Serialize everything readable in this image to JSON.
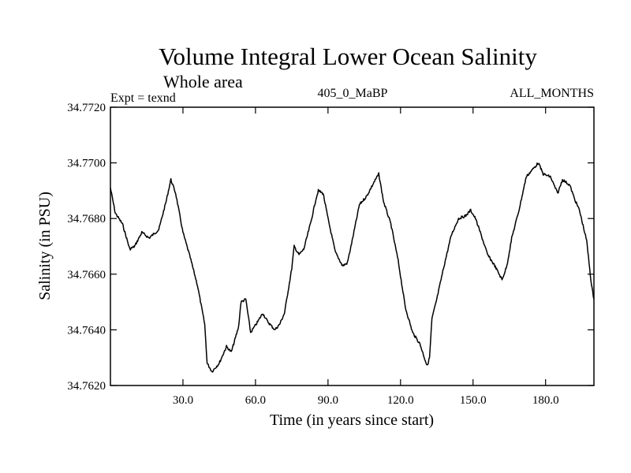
{
  "chart_data": {
    "type": "line",
    "title": "Volume Integral Lower Ocean Salinity",
    "subtitle": "Whole area",
    "annotations": {
      "left": "Expt = texnd",
      "center": "405_0_MaBP",
      "right": "ALL_MONTHS"
    },
    "xlabel": "Time (in years since start)",
    "ylabel": "Salinity (in PSU)",
    "xlim": [
      0,
      200
    ],
    "ylim": [
      34.762,
      34.772
    ],
    "xticks": [
      30,
      60,
      90,
      120,
      150,
      180
    ],
    "xtick_labels": [
      "30.0",
      "60.0",
      "90.0",
      "120.0",
      "150.0",
      "180.0"
    ],
    "yticks": [
      34.762,
      34.764,
      34.766,
      34.768,
      34.77,
      34.772
    ],
    "ytick_labels": [
      "34.7620",
      "34.7640",
      "34.7660",
      "34.7680",
      "34.7700",
      "34.7720"
    ],
    "grid": false,
    "series": [
      {
        "name": "Salinity",
        "x": [
          0,
          2,
          5,
          8,
          10,
          13,
          16,
          20,
          23,
          25,
          27,
          30,
          33,
          36,
          39,
          40,
          42,
          45,
          48,
          50,
          53,
          54,
          56,
          58,
          61,
          63,
          65,
          68,
          70,
          72,
          75,
          76,
          78,
          80,
          83,
          85,
          86,
          88,
          90,
          93,
          96,
          98,
          100,
          103,
          106,
          109,
          111,
          113,
          116,
          119,
          122,
          125,
          128,
          131,
          132,
          133,
          135,
          138,
          141,
          144,
          147,
          149,
          151,
          153,
          156,
          159,
          162,
          164,
          166,
          169,
          172,
          175,
          177,
          179,
          182,
          185,
          187,
          190,
          192,
          194,
          197,
          199,
          200
        ],
        "y": [
          34.7691,
          34.7682,
          34.7678,
          34.7669,
          34.767,
          34.7675,
          34.7673,
          34.7676,
          34.7686,
          34.7694,
          34.7689,
          34.7675,
          34.7666,
          34.7656,
          34.7642,
          34.7628,
          34.7625,
          34.7628,
          34.7634,
          34.7632,
          34.7641,
          34.765,
          34.7651,
          34.7639,
          34.7643,
          34.7646,
          34.7643,
          34.764,
          34.7642,
          34.7646,
          34.7662,
          34.767,
          34.7667,
          34.7669,
          34.7679,
          34.7687,
          34.769,
          34.7689,
          34.768,
          34.7668,
          34.7663,
          34.7664,
          34.7672,
          34.7685,
          34.7688,
          34.7693,
          34.7696,
          34.7686,
          34.7678,
          34.7665,
          34.7648,
          34.7639,
          34.7635,
          34.7627,
          34.763,
          34.7644,
          34.7651,
          34.7663,
          34.7674,
          34.768,
          34.7681,
          34.7683,
          34.768,
          34.7675,
          34.7667,
          34.7663,
          34.7658,
          34.7663,
          34.7673,
          34.7683,
          34.7695,
          34.7698,
          34.77,
          34.7696,
          34.7695,
          34.7689,
          34.7694,
          34.7692,
          34.7687,
          34.7683,
          34.7672,
          34.7656,
          34.7651
        ]
      }
    ]
  }
}
